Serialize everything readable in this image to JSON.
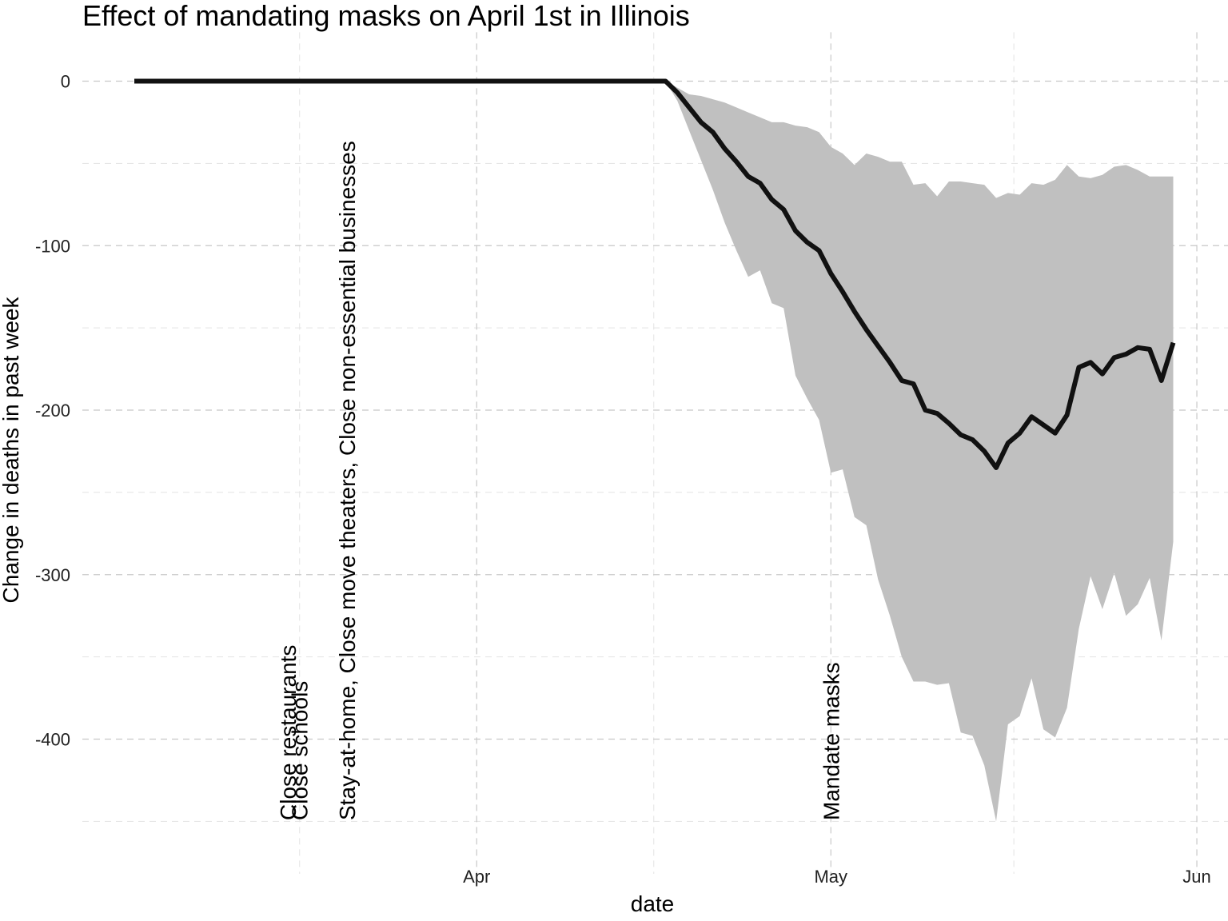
{
  "chart_data": {
    "type": "line",
    "title": "Effect of mandating masks on April 1st in Illinois",
    "xlabel": "date",
    "ylabel": "Change in deaths in past week",
    "x_start": "2020-03-03",
    "x_ticks": [
      {
        "date": "2020-04-01",
        "label": "Apr"
      },
      {
        "date": "2020-05-01",
        "label": "May"
      },
      {
        "date": "2020-06-01",
        "label": "Jun"
      }
    ],
    "y_ticks": [
      0,
      -100,
      -200,
      -300,
      -400
    ],
    "ylim": [
      -460,
      20
    ],
    "grid": true,
    "events": [
      {
        "date": "2020-03-16",
        "label": "Close restaurants"
      },
      {
        "date": "2020-03-17",
        "label": "Close schools"
      },
      {
        "date": "2020-03-21",
        "label": "Stay-at-home, Close move theaters, Close non-essential businesses"
      },
      {
        "date": "2020-05-01",
        "label": "Mandate masks"
      }
    ],
    "series": [
      {
        "values": [
          0,
          0,
          0,
          0,
          0,
          0,
          0,
          0,
          0,
          0,
          0,
          0,
          0,
          0,
          0,
          0,
          0,
          0,
          0,
          0,
          0,
          0,
          0,
          0,
          0,
          0,
          0,
          0,
          0,
          0,
          0,
          0,
          0,
          0,
          0,
          0,
          0,
          0,
          0,
          0,
          0,
          0,
          0,
          0,
          0,
          0,
          -7,
          -16,
          -25,
          -31,
          -41,
          -49,
          -58,
          -62,
          -72,
          -78,
          -91,
          -98,
          -103,
          -117,
          -128,
          -140,
          -151,
          -161,
          -171,
          -182,
          -184,
          -200,
          -202,
          -208,
          -215,
          -218,
          -225,
          -235,
          -220,
          -214,
          -204,
          -209,
          -214,
          -203,
          -174,
          -171,
          -178,
          -168,
          -166,
          -162,
          -163,
          -182,
          -159
        ],
        "lower": [
          0,
          0,
          0,
          0,
          0,
          0,
          0,
          0,
          0,
          0,
          0,
          0,
          0,
          0,
          0,
          0,
          0,
          0,
          0,
          0,
          0,
          0,
          0,
          0,
          0,
          0,
          0,
          0,
          0,
          0,
          0,
          0,
          0,
          0,
          0,
          0,
          0,
          0,
          0,
          0,
          0,
          0,
          0,
          0,
          0,
          0,
          -12,
          -30,
          -48,
          -66,
          -86,
          -103,
          -119,
          -115,
          -135,
          -138,
          -179,
          -193,
          -206,
          -238,
          -236,
          -265,
          -270,
          -303,
          -325,
          -350,
          -365,
          -365,
          -367,
          -366,
          -396,
          -398,
          -416,
          -450,
          -391,
          -386,
          -363,
          -394,
          -399,
          -381,
          -333,
          -301,
          -321,
          -299,
          -325,
          -318,
          -302,
          -340,
          -280
        ],
        "upper": [
          0,
          0,
          0,
          0,
          0,
          0,
          0,
          0,
          0,
          0,
          0,
          0,
          0,
          0,
          0,
          0,
          0,
          0,
          0,
          0,
          0,
          0,
          0,
          0,
          0,
          0,
          0,
          0,
          0,
          0,
          0,
          0,
          0,
          0,
          0,
          0,
          0,
          0,
          0,
          0,
          0,
          0,
          0,
          0,
          0,
          0,
          -4,
          -8,
          -9,
          -11,
          -13,
          -16,
          -19,
          -22,
          -25,
          -25,
          -27,
          -28,
          -31,
          -40,
          -44,
          -51,
          -44,
          -46,
          -49,
          -49,
          -63,
          -62,
          -70,
          -61,
          -61,
          -62,
          -63,
          -71,
          -68,
          -69,
          -62,
          -63,
          -60,
          -51,
          -58,
          -59,
          -57,
          -52,
          -51,
          -54,
          -58,
          -58,
          -58
        ]
      }
    ]
  }
}
